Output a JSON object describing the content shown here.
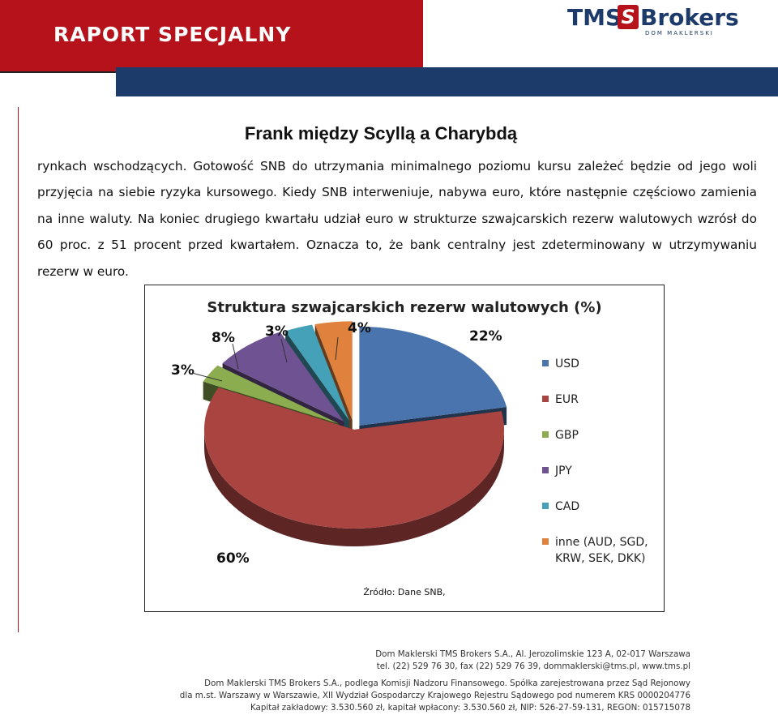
{
  "header": {
    "report_label": "RAPORT SPECJALNY",
    "logo_tms": "TMS",
    "logo_s": "S",
    "logo_brokers": "Brokers",
    "logo_sub": "DOM MAKLERSKI"
  },
  "title": "Frank między Scyllą a Charybdą",
  "body": "rynkach wschodzących. Gotowość SNB do utrzymania minimalnego poziomu kursu zależeć będzie od jego woli przyjęcia na siebie ryzyka kursowego. Kiedy SNB interweniuje, nabywa euro, które następnie częściowo zamienia na inne waluty. Na koniec drugiego kwartału udział euro w strukturze szwajcarskich rezerw walutowych wzrósł do 60 proc. z 51 procent przed kwartałem. Oznacza to, że bank centralny jest zdeterminowany w utrzymywaniu rezerw w euro.",
  "chart_data": {
    "type": "pie",
    "title": "Struktura szwajcarskich rezerw walutowych (%)",
    "categories": [
      "USD",
      "EUR",
      "GBP",
      "JPY",
      "CAD",
      "inne (AUD, SGD, KRW, SEK, DKK)"
    ],
    "values": [
      22,
      60,
      3,
      8,
      3,
      4
    ],
    "data_labels": [
      "22%",
      "60%",
      "3%",
      "8%",
      "3%",
      "4%"
    ],
    "colors": [
      "#4a74ad",
      "#a94441",
      "#8bad4f",
      "#6f5292",
      "#45a1b8",
      "#e0823e"
    ],
    "legend_placement": "right",
    "style": "3d exploded pie"
  },
  "source": "Źródło: Dane SNB,",
  "footer": {
    "line1": "Dom Maklerski TMS Brokers S.A., Al. Jerozolimskie 123 A, 02-017 Warszawa",
    "line2": "tel. (22) 529 76 30, fax (22) 529 76 39, dommaklerski@tms.pl, www.tms.pl",
    "line3": "Dom Maklerski TMS Brokers S.A., podlega Komisji Nadzoru Finansowego. Spółka zarejestrowana przez Sąd Rejonowy",
    "line4": "dla m.st. Warszawy w Warszawie, XII Wydział Gospodarczy Krajowego Rejestru Sądowego pod numerem KRS 0000204776",
    "line5": "Kapitał zakładowy: 3.530.560 zł, kapitał wpłacony: 3.530.560 zł, NIP: 526-27-59-131, REGON: 015715078"
  }
}
